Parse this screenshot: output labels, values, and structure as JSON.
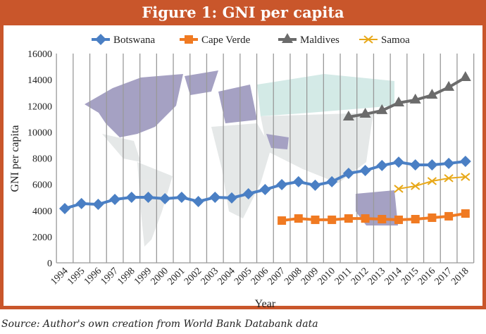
{
  "title": "Figure 1: GNI per capita",
  "source": "Source: Author's own creation from World Bank Databank data",
  "chart_data": {
    "type": "line",
    "title": "Figure 1: GNI per capita",
    "xlabel": "Year",
    "ylabel": "GNI per capita",
    "ylim": [
      0,
      16000
    ],
    "yticks": [
      "0",
      "2000",
      "4000",
      "6000",
      "8000",
      "10000",
      "12000",
      "14000",
      "16000"
    ],
    "categories": [
      "1994",
      "1995",
      "1996",
      "1997",
      "1998",
      "1999",
      "2000",
      "2001",
      "2002",
      "2003",
      "2004",
      "2005",
      "2006",
      "2007",
      "2008",
      "2009",
      "2010",
      "2011",
      "2012",
      "2013",
      "2014",
      "2015",
      "2016",
      "2017",
      "2018"
    ],
    "legend_position": "top",
    "grid": "vertical",
    "series": [
      {
        "name": "Botswana",
        "color": "#4a7fc4",
        "marker": "diamond",
        "values": [
          4150,
          4530,
          4470,
          4850,
          5010,
          5010,
          4900,
          5010,
          4690,
          5010,
          4960,
          5280,
          5600,
          5980,
          6200,
          5930,
          6200,
          6840,
          7060,
          7440,
          7700,
          7490,
          7490,
          7600,
          7760
        ]
      },
      {
        "name": "Cape Verde",
        "color": "#f07a22",
        "marker": "square",
        "values": [
          null,
          null,
          null,
          null,
          null,
          null,
          null,
          null,
          null,
          null,
          null,
          null,
          null,
          3230,
          3390,
          3290,
          3290,
          3390,
          3390,
          3340,
          3290,
          3340,
          3450,
          3560,
          3770
        ]
      },
      {
        "name": "Maldives",
        "color": "#6b6b6b",
        "marker": "triangle",
        "values": [
          null,
          null,
          null,
          null,
          null,
          null,
          null,
          null,
          null,
          null,
          null,
          null,
          null,
          null,
          null,
          null,
          null,
          11150,
          11370,
          11640,
          12230,
          12450,
          12820,
          13420,
          14170
        ]
      },
      {
        "name": "Samoa",
        "color": "#e8a818",
        "marker": "x",
        "values": [
          null,
          null,
          null,
          null,
          null,
          null,
          null,
          null,
          null,
          null,
          null,
          null,
          null,
          null,
          null,
          null,
          null,
          null,
          null,
          null,
          5660,
          5870,
          6250,
          6470,
          6570
        ]
      }
    ]
  }
}
